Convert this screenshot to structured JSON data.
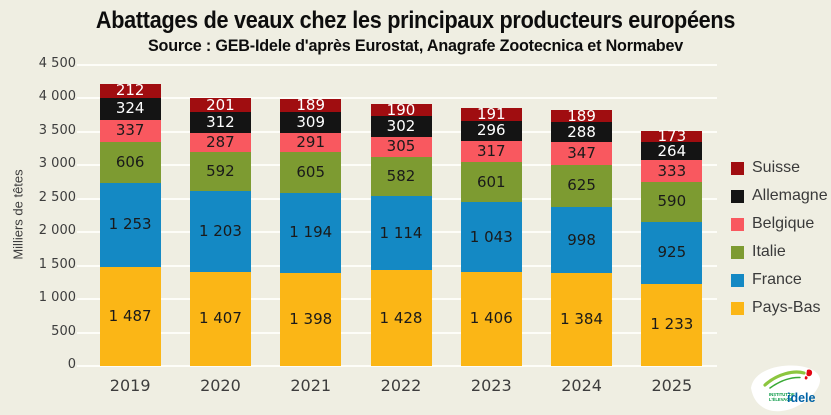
{
  "title": "Abattages de veaux chez les principaux producteurs européens",
  "subtitle": "Source : GEB-Idele d'après Eurostat, Anagrafe Zootecnica et Normabev",
  "chart_data": {
    "type": "bar",
    "stacked": true,
    "title": "Abattages de veaux chez les principaux producteurs européens",
    "subtitle": "Source : GEB-Idele d'après Eurostat, Anagrafe Zootecnica et Normabev",
    "ylabel": "Milliers de têtes",
    "xlabel": "",
    "ylim": [
      0,
      4500
    ],
    "ytick_step": 500,
    "grid": true,
    "legend_position": "right",
    "categories": [
      "2019",
      "2020",
      "2021",
      "2022",
      "2023",
      "2024",
      "2025"
    ],
    "series": [
      {
        "name": "Pays-Bas",
        "color": "#FBB616",
        "label_color": "#1a1a1a",
        "values": [
          1487,
          1407,
          1398,
          1428,
          1406,
          1384,
          1233
        ]
      },
      {
        "name": "France",
        "color": "#1489C4",
        "label_color": "#1a1a1a",
        "values": [
          1253,
          1203,
          1194,
          1114,
          1043,
          998,
          925
        ]
      },
      {
        "name": "Italie",
        "color": "#7D9B31",
        "label_color": "#1a1a1a",
        "values": [
          606,
          592,
          605,
          582,
          601,
          625,
          590
        ]
      },
      {
        "name": "Belgique",
        "color": "#F9585F",
        "label_color": "#1a1a1a",
        "values": [
          337,
          287,
          291,
          305,
          317,
          347,
          333
        ]
      },
      {
        "name": "Allemagne",
        "color": "#141414",
        "label_color": "#ffffff",
        "values": [
          324,
          312,
          309,
          302,
          296,
          288,
          264
        ]
      },
      {
        "name": "Suisse",
        "color": "#A00D10",
        "label_color": "#ffffff",
        "values": [
          212,
          201,
          189,
          190,
          191,
          189,
          173
        ]
      }
    ],
    "legend_order": [
      "Suisse",
      "Allemagne",
      "Belgique",
      "Italie",
      "France",
      "Pays-Bas"
    ]
  },
  "logo": {
    "label": "idele",
    "sublabel1": "INSTITUT DE",
    "sublabel2": "L'ÉLEVAGE"
  }
}
